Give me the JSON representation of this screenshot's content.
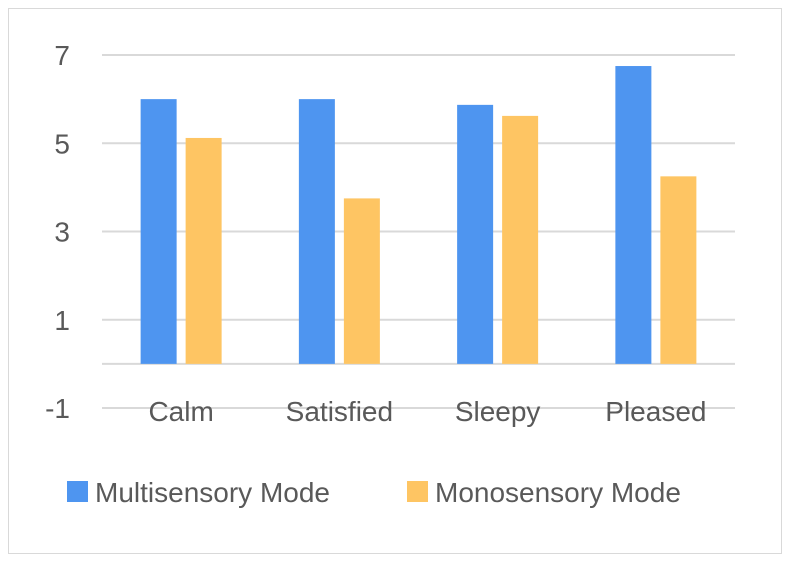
{
  "chart_data": {
    "type": "bar",
    "title": "",
    "xlabel": "",
    "ylabel": "",
    "categories": [
      "Calm",
      "Satisfied",
      "Sleepy",
      "Pleased"
    ],
    "series": [
      {
        "name": "Multisensory Mode",
        "values": [
          6.0,
          6.0,
          5.87,
          6.75
        ],
        "color": "#4e95f0"
      },
      {
        "name": "Monosensory Mode",
        "values": [
          5.12,
          3.75,
          5.62,
          4.25
        ],
        "color": "#fec563"
      }
    ],
    "ylim": [
      -1,
      7
    ],
    "yticks": [
      -1,
      1,
      3,
      5,
      7
    ],
    "grid": true,
    "legend": "bottom"
  }
}
